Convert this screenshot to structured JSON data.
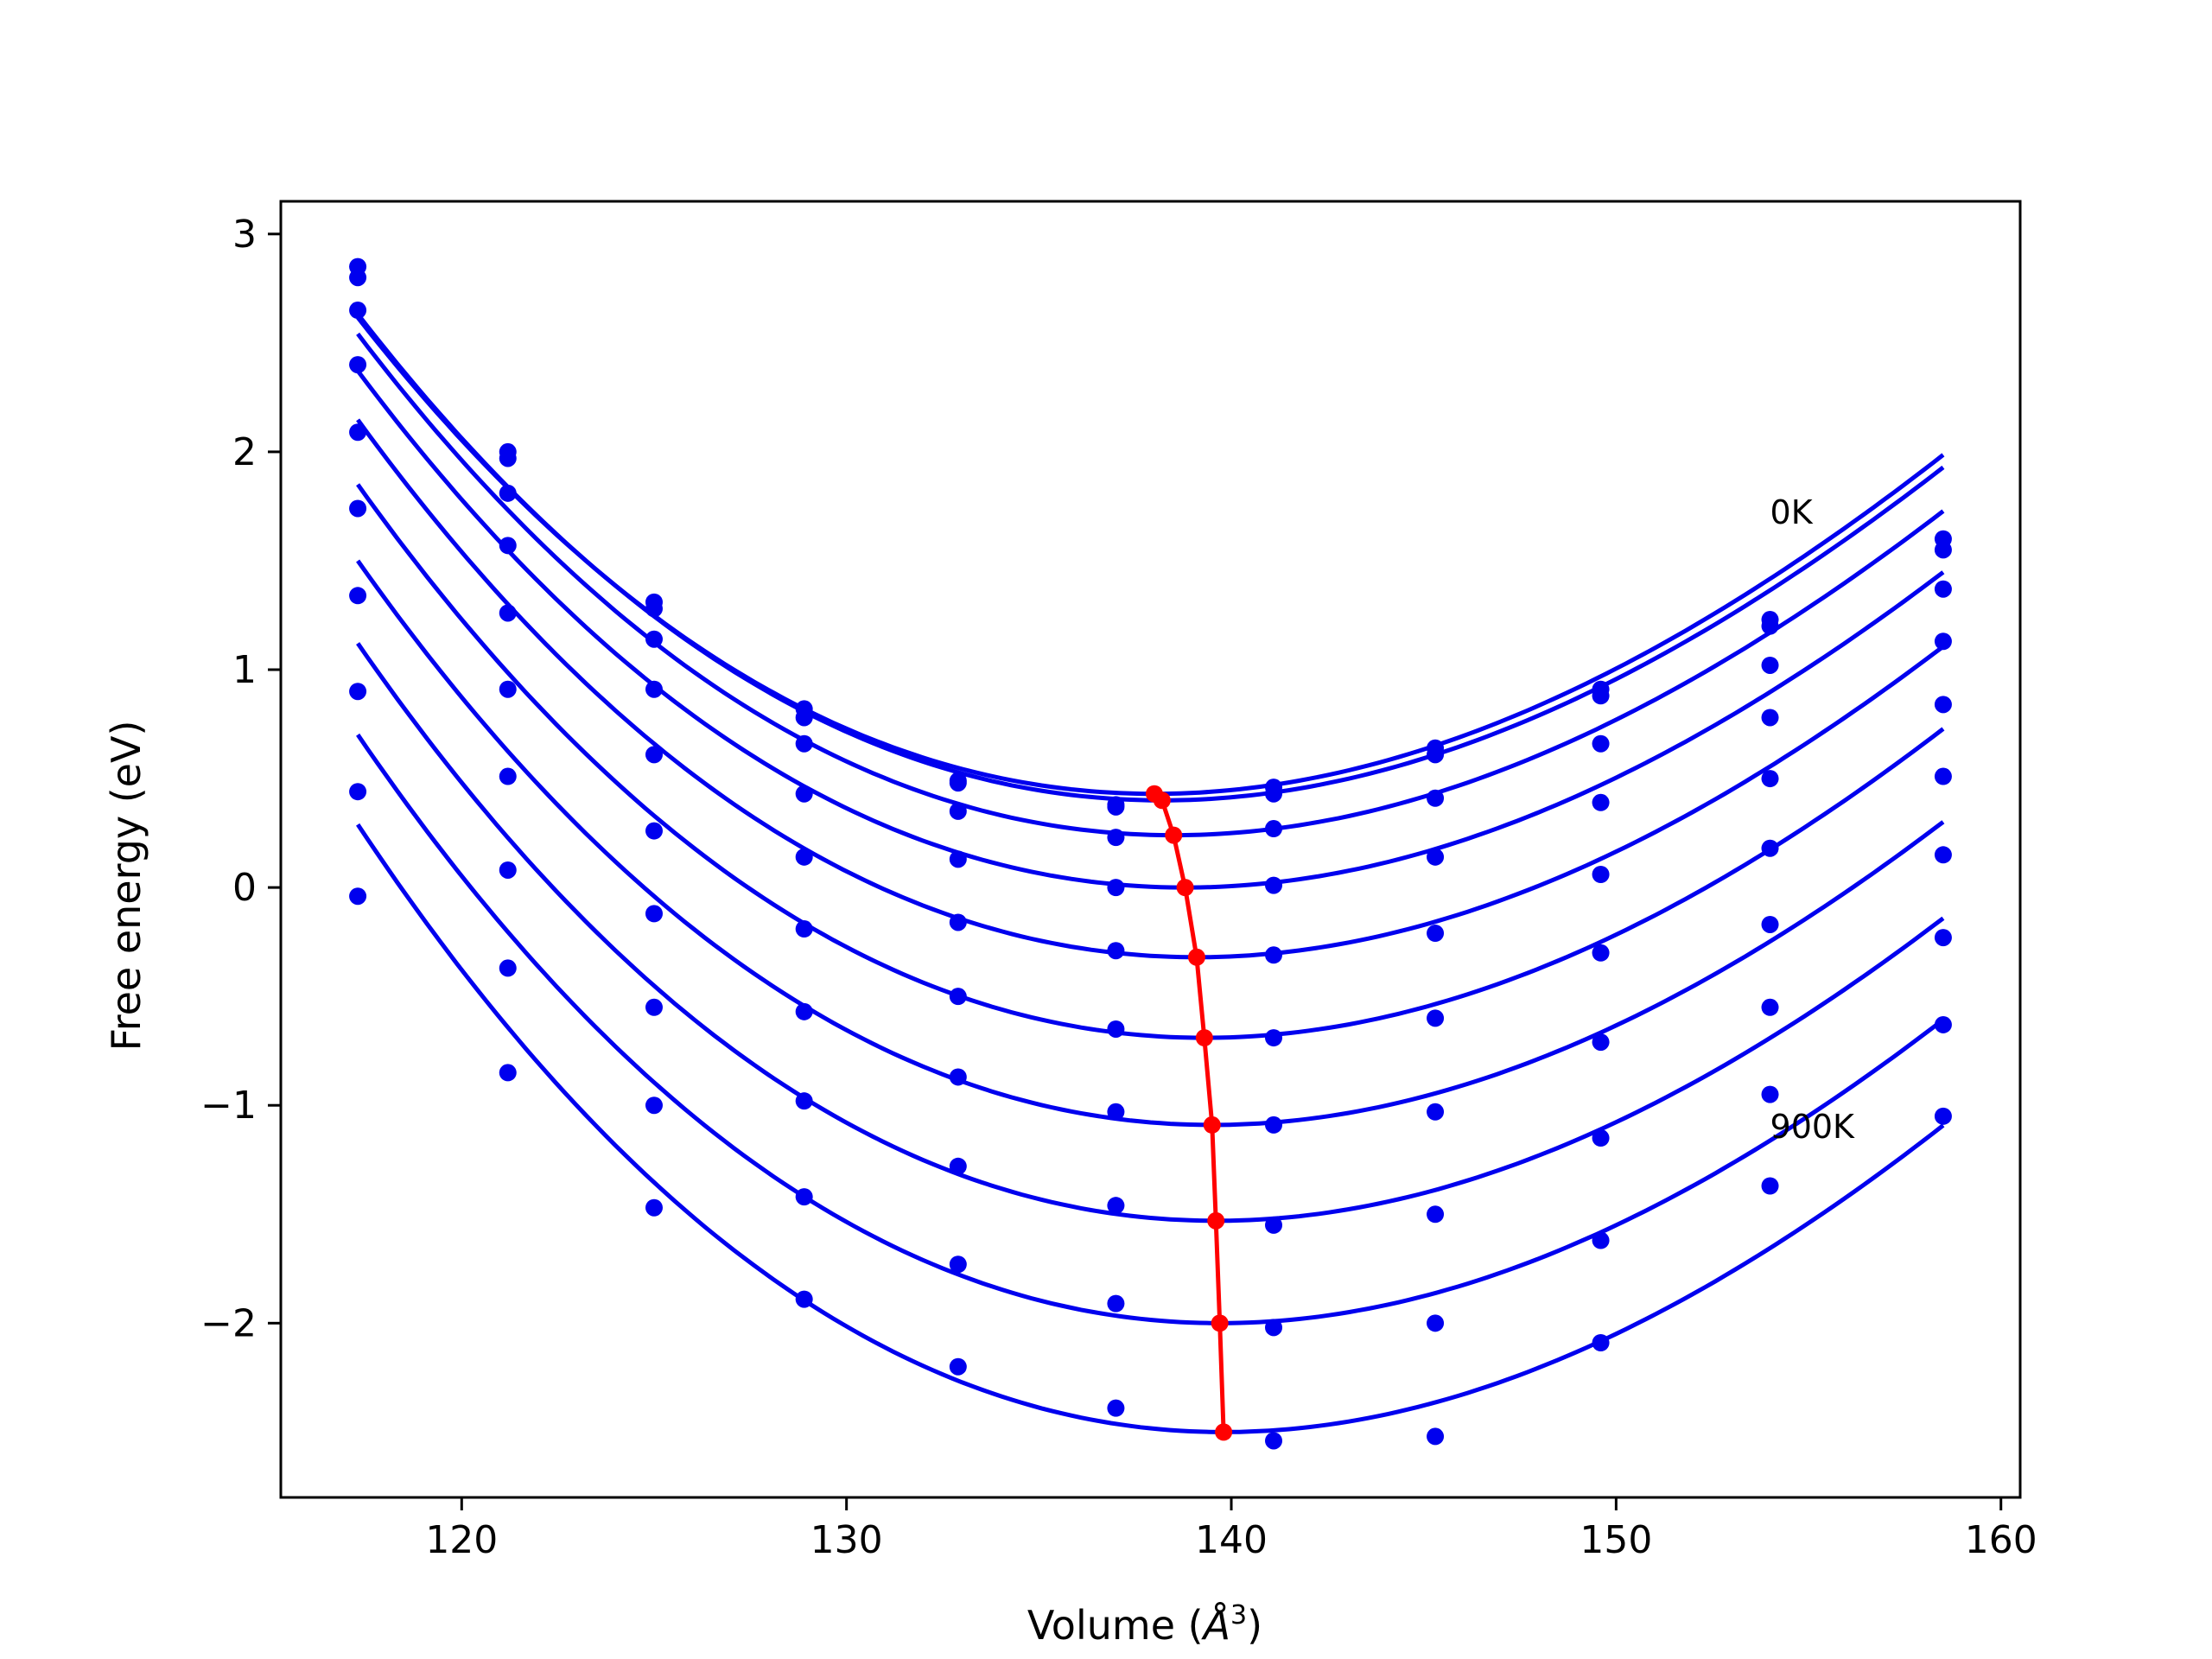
{
  "chart_data": {
    "type": "line",
    "xlabel": "Volume (",
    "xlabel_unit": "Å",
    "xlabel_exp": "3",
    "xlabel_close": ")",
    "ylabel": "Free energy (eV)",
    "xlim": [
      115.3,
      160.5
    ],
    "ylim": [
      -2.8,
      3.15
    ],
    "xticks": [
      120,
      130,
      140,
      150,
      160
    ],
    "xtick_labels": [
      "120",
      "130",
      "140",
      "150",
      "160"
    ],
    "yticks": [
      -2,
      -1,
      0,
      1,
      2,
      3
    ],
    "ytick_labels": [
      "−2",
      "−1",
      "0",
      "1",
      "2",
      "3"
    ],
    "grid": false,
    "colors": {
      "curves": "#0000ee",
      "equilibrium": "#ff0000",
      "frame": "#000000"
    },
    "annotations": [
      {
        "text": "0K",
        "x": 154.0,
        "y": 1.67
      },
      {
        "text": "900K",
        "x": 154.0,
        "y": -1.15
      }
    ],
    "volumes": [
      117.3,
      121.2,
      125.0,
      128.9,
      132.9,
      137.0,
      141.1,
      145.3,
      149.6,
      154.0,
      158.5
    ],
    "series": [
      {
        "v0": 138.0,
        "f0": 0.43,
        "a": 0.0044,
        "b": -3.4e-05,
        "points": [
          2.85,
          2.0,
          1.31,
          0.82,
          0.49,
          0.38,
          0.46,
          0.64,
          0.91,
          1.23,
          1.6
        ]
      },
      {
        "v0": 138.2,
        "f0": 0.4,
        "a": 0.0044,
        "b": -3.4e-05,
        "points": [
          2.8,
          1.97,
          1.28,
          0.78,
          0.48,
          0.37,
          0.43,
          0.61,
          0.88,
          1.2,
          1.55
        ]
      },
      {
        "v0": 138.5,
        "f0": 0.24,
        "a": 0.0044,
        "b": -3.4e-05,
        "points": [
          2.65,
          1.81,
          1.14,
          0.66,
          0.35,
          0.23,
          0.27,
          0.41,
          0.66,
          1.02,
          1.37
        ]
      },
      {
        "v0": 138.8,
        "f0": 0.0,
        "a": 0.0044,
        "b": -3.4e-05,
        "points": [
          2.4,
          1.57,
          0.91,
          0.43,
          0.13,
          0.0,
          0.01,
          0.14,
          0.39,
          0.78,
          1.13
        ]
      },
      {
        "v0": 139.1,
        "f0": -0.32,
        "a": 0.00445,
        "b": -3.4e-05,
        "points": [
          2.09,
          1.26,
          0.61,
          0.14,
          -0.16,
          -0.29,
          -0.31,
          -0.21,
          0.06,
          0.5,
          0.84
        ]
      },
      {
        "v0": 139.3,
        "f0": -0.69,
        "a": 0.0045,
        "b": -3.4e-05,
        "points": [
          1.74,
          0.91,
          0.26,
          -0.19,
          -0.5,
          -0.65,
          -0.69,
          -0.6,
          -0.3,
          0.18,
          0.51
        ]
      },
      {
        "v0": 139.5,
        "f0": -1.09,
        "a": 0.0045,
        "b": -3.4e-05,
        "points": [
          1.34,
          0.51,
          -0.12,
          -0.57,
          -0.87,
          -1.03,
          -1.09,
          -1.03,
          -0.71,
          -0.17,
          0.15
        ]
      },
      {
        "v0": 139.6,
        "f0": -1.53,
        "a": 0.00455,
        "b": -3.5e-05,
        "points": [
          0.9,
          0.08,
          -0.55,
          -0.98,
          -1.28,
          -1.46,
          -1.55,
          -1.5,
          -1.15,
          -0.55,
          -0.23
        ]
      },
      {
        "v0": 139.7,
        "f0": -2.0,
        "a": 0.0046,
        "b": -3.5e-05,
        "points": [
          0.44,
          -0.37,
          -1.0,
          -1.42,
          -1.73,
          -1.91,
          -2.02,
          -2.0,
          -1.62,
          -0.95,
          -0.63
        ]
      },
      {
        "v0": 139.8,
        "f0": -2.5,
        "a": 0.0047,
        "b": -3.6e-05,
        "points": [
          -0.04,
          -0.85,
          -1.47,
          -1.89,
          -2.2,
          -2.39,
          -2.54,
          -2.52,
          -2.09,
          -1.37,
          -1.05
        ]
      }
    ]
  }
}
